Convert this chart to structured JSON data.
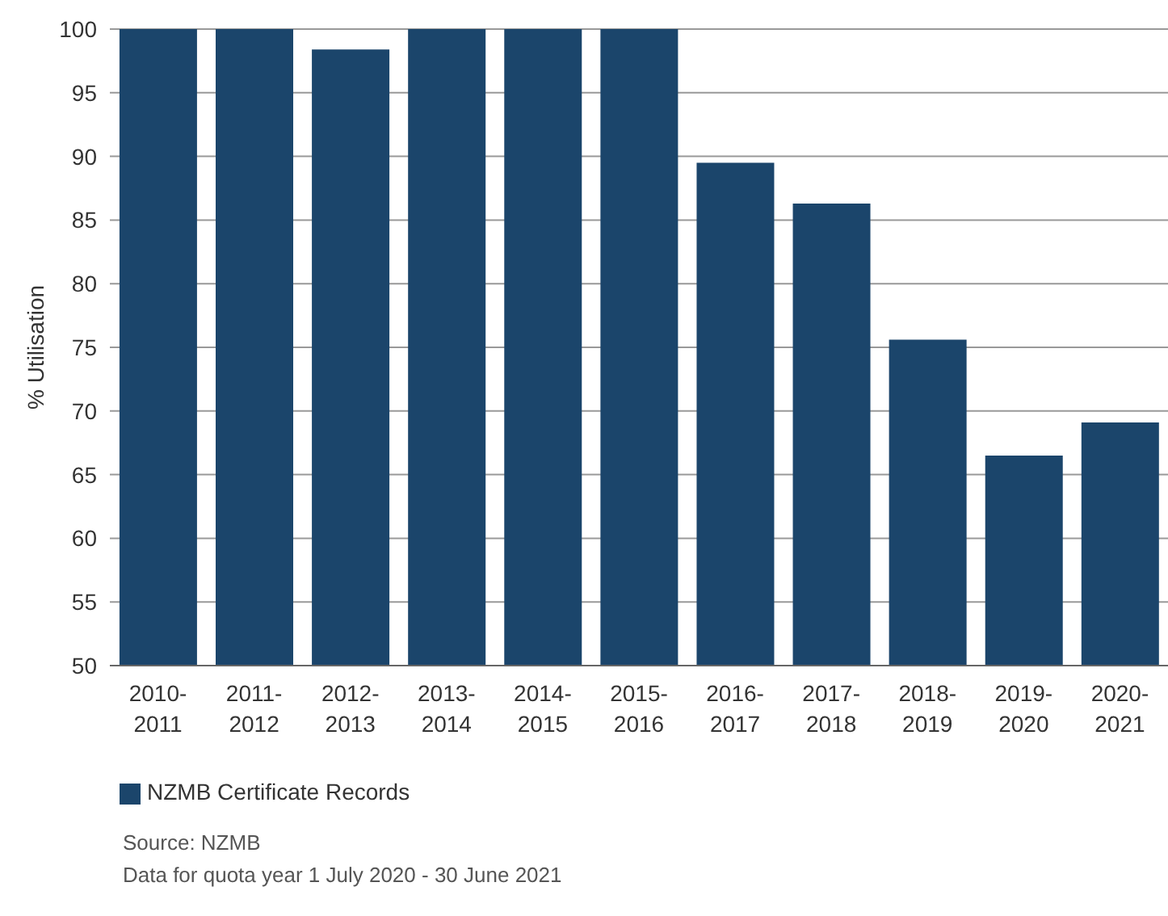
{
  "chart_data": {
    "type": "bar",
    "ylabel": "% Utilisation",
    "categories": [
      "2010-2011",
      "2011-2012",
      "2012-2013",
      "2013-2014",
      "2014-2015",
      "2015-2016",
      "2016-2017",
      "2017-2018",
      "2018-2019",
      "2019-2020",
      "2020-2021"
    ],
    "series": [
      {
        "name": "NZMB Certificate Records",
        "color": "#1b456b",
        "values": [
          100,
          100,
          98.4,
          100,
          100,
          100,
          89.5,
          86.3,
          75.6,
          66.5,
          69.1
        ]
      }
    ],
    "ylim": [
      50,
      100
    ],
    "yticks": [
      50,
      55,
      60,
      65,
      70,
      75,
      80,
      85,
      90,
      95,
      100
    ],
    "grid": "y",
    "legend": "bottom left",
    "annotations": [
      "Source: NZMB",
      "Data for quota year 1 July 2020 - 30 June 2021"
    ]
  }
}
